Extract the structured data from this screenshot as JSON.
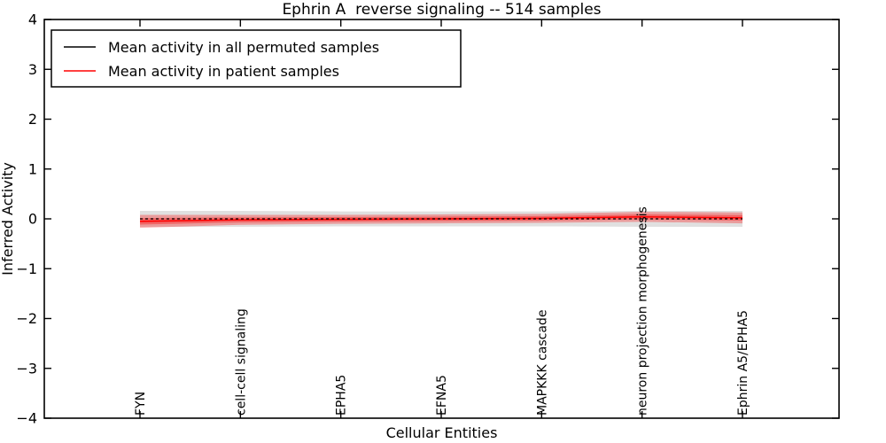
{
  "figure": {
    "background": "#ffffff",
    "border_color": "#000000"
  },
  "chart_data": {
    "type": "line",
    "title": "Ephrin A  reverse signaling -- 514 samples",
    "xlabel": "Cellular Entities",
    "ylabel": "Inferred Activity",
    "ylim": [
      -4,
      4
    ],
    "yticks": [
      -4,
      -3,
      -2,
      -1,
      0,
      1,
      2,
      3,
      4
    ],
    "grid": false,
    "tick_direction": "in",
    "legend_position": "upper left",
    "categories": [
      "FYN",
      "cell-cell signaling",
      "EPHA5",
      "EFNA5",
      "MAPKKK cascade",
      "neuron projection morphogenesis",
      "Ephrin A5/EPHA5"
    ],
    "series": [
      {
        "name": "Mean activity in all permuted samples",
        "color": "#000000",
        "line_style": "dashed",
        "values": [
          0.0,
          0.0,
          0.0,
          0.0,
          0.0,
          0.0,
          0.0
        ],
        "band_halfwidth": [
          0.16,
          0.16,
          0.15,
          0.15,
          0.15,
          0.16,
          0.16
        ],
        "band_color": "#999999",
        "band_alpha": 0.3,
        "band_core_alpha": 0
      },
      {
        "name": "Mean activity in patient samples",
        "color": "#ff0000",
        "line_style": "solid",
        "values": [
          -0.05,
          -0.02,
          -0.01,
          0.0,
          0.01,
          0.04,
          0.02
        ],
        "band_halfwidth": [
          0.13,
          0.1,
          0.09,
          0.09,
          0.09,
          0.1,
          0.11
        ],
        "band_color": "#ff0000",
        "band_alpha": 0.3,
        "band_core_alpha": 0.35
      }
    ]
  }
}
